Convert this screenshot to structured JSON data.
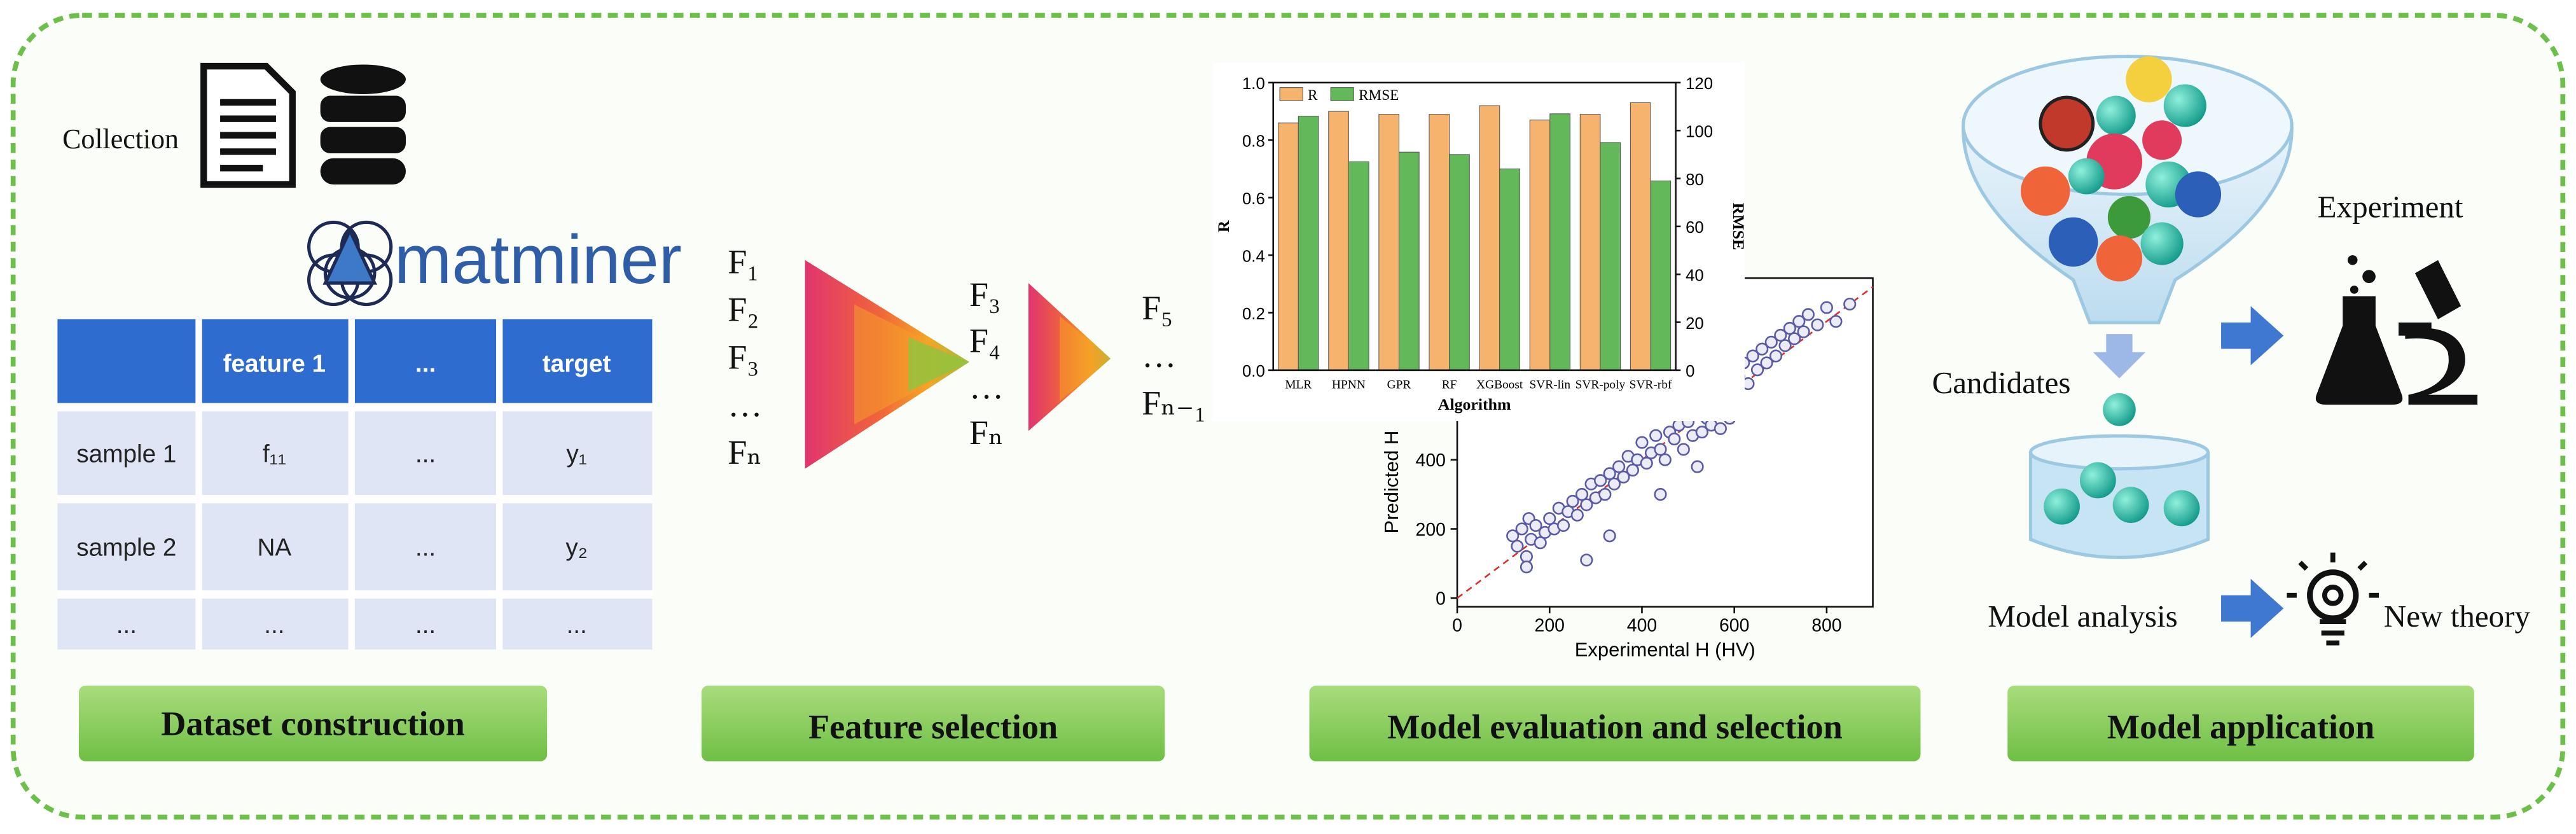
{
  "dataset": {
    "collection_label": "Collection",
    "logo_text": "matminer",
    "table": {
      "header": [
        "feature 1",
        "...",
        "target"
      ],
      "rows": [
        [
          "sample 1",
          "f₁₁",
          "...",
          "y₁"
        ],
        [
          "sample 2",
          "NA",
          "...",
          "y₂"
        ],
        [
          "...",
          "...",
          "...",
          "..."
        ]
      ]
    }
  },
  "feature_selection": {
    "input_features": [
      "F₁",
      "F₂",
      "F₃",
      "…",
      "Fₙ"
    ],
    "intermediate_features": [
      "F₃",
      "F₄",
      "…",
      "Fₙ"
    ],
    "selected_features": [
      "F₅",
      "…",
      "Fₙ₋₁"
    ]
  },
  "chart_data": [
    {
      "type": "scatter",
      "xlabel": "Experimental H (HV)",
      "ylabel": "Predicted H",
      "color": "#5a5aa8",
      "reference_line_color": "#d9302c",
      "xlim": [
        0,
        900
      ],
      "xticks": [
        0,
        200,
        400,
        600,
        800
      ],
      "ylim": [
        -25,
        925
      ],
      "yticks": [
        0,
        200,
        400
      ],
      "x": [
        120,
        130,
        140,
        150,
        155,
        160,
        170,
        180,
        190,
        200,
        210,
        220,
        230,
        240,
        250,
        260,
        270,
        280,
        290,
        300,
        310,
        320,
        330,
        340,
        350,
        360,
        370,
        380,
        390,
        400,
        410,
        420,
        430,
        440,
        450,
        460,
        470,
        480,
        490,
        500,
        510,
        520,
        530,
        540,
        550,
        560,
        570,
        580,
        590,
        600,
        610,
        620,
        630,
        640,
        650,
        660,
        670,
        680,
        690,
        700,
        710,
        720,
        730,
        740,
        750,
        760,
        780,
        800,
        820,
        850,
        280,
        150,
        330,
        440,
        520
      ],
      "values": [
        180,
        150,
        200,
        120,
        230,
        170,
        210,
        160,
        190,
        230,
        200,
        260,
        210,
        250,
        280,
        240,
        300,
        270,
        330,
        290,
        340,
        300,
        360,
        330,
        380,
        350,
        410,
        370,
        400,
        450,
        390,
        420,
        470,
        430,
        400,
        480,
        460,
        500,
        430,
        510,
        470,
        540,
        480,
        520,
        500,
        560,
        490,
        530,
        520,
        600,
        640,
        680,
        620,
        700,
        660,
        720,
        680,
        740,
        700,
        760,
        730,
        780,
        750,
        800,
        770,
        820,
        790,
        840,
        800,
        850,
        110,
        90,
        180,
        300,
        380
      ]
    },
    {
      "type": "bar",
      "xlabel": "Algorithm",
      "ylabel": "R",
      "y2label": "RMSE",
      "categories": [
        "MLR",
        "HPNN",
        "GPR",
        "RF",
        "XGBoost",
        "SVR-lin",
        "SVR-poly",
        "SVR-rbf"
      ],
      "ylim": [
        0,
        1
      ],
      "yticks": [
        {
          "value": 0,
          "label": "0.0"
        },
        0.2,
        0.4,
        0.6,
        0.8,
        {
          "value": 1,
          "label": "1.0"
        }
      ],
      "y2lim": [
        0,
        120
      ],
      "y2ticks": [
        0,
        20,
        40,
        60,
        80,
        100,
        120
      ],
      "legend": "top-left",
      "series": [
        {
          "name": "R",
          "color": "#f6b36d",
          "values": [
            0.86,
            0.9,
            0.89,
            0.89,
            0.92,
            0.87,
            0.89,
            0.93
          ]
        },
        {
          "name": "RMSE",
          "color": "#63b95a",
          "axis": "y2",
          "values": [
            106,
            87,
            91,
            90,
            84,
            107,
            95,
            79
          ]
        }
      ]
    }
  ],
  "application": {
    "candidates_label": "Candidates",
    "experiment_label": "Experiment",
    "analysis_label": "Model analysis",
    "theory_label": "New theory"
  },
  "stages": [
    "Dataset construction",
    "Feature selection",
    "Model evaluation and selection",
    "Model application"
  ]
}
